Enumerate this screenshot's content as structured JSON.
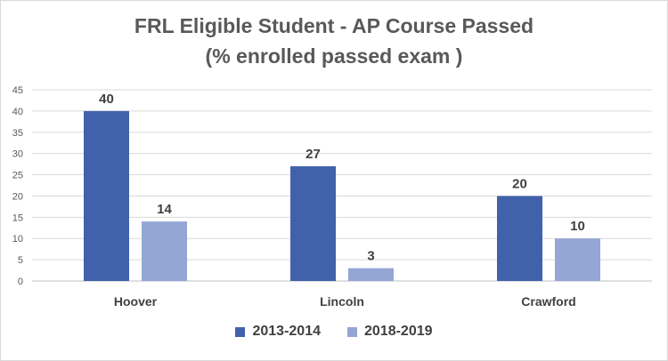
{
  "chart_data": {
    "type": "bar",
    "title": "FRL Eligible Student - AP Course Passed",
    "subtitle": "(% enrolled passed exam )",
    "categories": [
      "Hoover",
      "Lincoln",
      "Crawford"
    ],
    "series": [
      {
        "name": "2013-2014",
        "values": [
          40,
          27,
          20
        ],
        "color": "#4161ab"
      },
      {
        "name": "2018-2019",
        "values": [
          14,
          3,
          10
        ],
        "color": "#93a6d4"
      }
    ],
    "ylim": [
      0,
      45
    ],
    "yticks": [
      0,
      5,
      10,
      15,
      20,
      25,
      30,
      35,
      40,
      45
    ],
    "xlabel": "",
    "ylabel": "",
    "grid": true,
    "legend": "bottom"
  }
}
